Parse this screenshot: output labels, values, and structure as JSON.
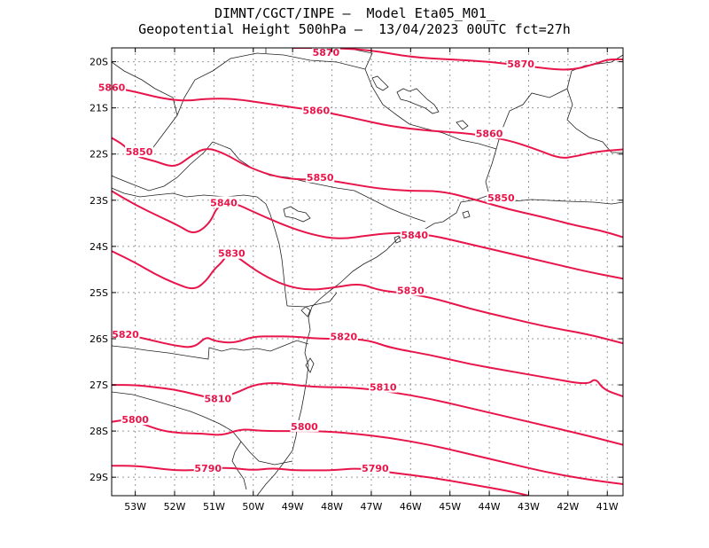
{
  "header": {
    "line1": "DIMNT/CGCT/INPE –  Model Eta05_M01_",
    "line2": "Geopotential Height 500hPa –  13/04/2023 00UTC fct=27h"
  },
  "axes": {
    "lat_ticks": [
      "20S",
      "21S",
      "22S",
      "23S",
      "24S",
      "25S",
      "26S",
      "27S",
      "28S",
      "29S"
    ],
    "lon_ticks": [
      "53W",
      "52W",
      "51W",
      "50W",
      "49W",
      "48W",
      "47W",
      "46W",
      "45W",
      "44W",
      "43W",
      "42W",
      "41W"
    ]
  },
  "chart_data": {
    "type": "contour",
    "variable": "Geopotential Height 500hPa",
    "xlim": [
      -53.6,
      -40.6
    ],
    "ylim": [
      -29.4,
      -19.7
    ],
    "grid": true,
    "contours": [
      {
        "level": 5870,
        "color": "#e8154a",
        "points": [
          [
            -49.0,
            -19.7
          ],
          [
            -48.0,
            -19.7
          ],
          [
            -47.0,
            -19.75
          ],
          [
            -46.0,
            -19.9
          ],
          [
            -45.0,
            -19.95
          ],
          [
            -44.0,
            -20.0
          ],
          [
            -43.0,
            -20.1
          ],
          [
            -42.0,
            -20.2
          ],
          [
            -41.3,
            -20.05
          ],
          [
            -41.0,
            -19.95
          ],
          [
            -40.6,
            -19.95
          ]
        ],
        "labels": [
          {
            "text": "5870",
            "lon": -48.15,
            "lat": -19.8
          },
          {
            "text": "5870",
            "lon": -43.2,
            "lat": -20.05
          }
        ]
      },
      {
        "level": 5860,
        "color": "#e8154a",
        "points": [
          [
            -53.6,
            -20.55
          ],
          [
            -53.0,
            -20.65
          ],
          [
            -52.3,
            -20.8
          ],
          [
            -51.7,
            -20.85
          ],
          [
            -51.2,
            -20.8
          ],
          [
            -50.5,
            -20.8
          ],
          [
            -49.7,
            -20.9
          ],
          [
            -48.9,
            -21.0
          ],
          [
            -48.1,
            -21.1
          ],
          [
            -47.3,
            -21.25
          ],
          [
            -46.5,
            -21.4
          ],
          [
            -45.5,
            -21.5
          ],
          [
            -44.5,
            -21.55
          ],
          [
            -43.5,
            -21.7
          ],
          [
            -42.8,
            -21.9
          ],
          [
            -42.2,
            -22.1
          ],
          [
            -41.8,
            -22.05
          ],
          [
            -41.3,
            -21.95
          ],
          [
            -40.6,
            -21.9
          ]
        ],
        "labels": [
          {
            "text": "5860",
            "lon": -53.6,
            "lat": -20.55
          },
          {
            "text": "5860",
            "lon": -48.4,
            "lat": -21.05
          },
          {
            "text": "5860",
            "lon": -44.0,
            "lat": -21.55
          }
        ]
      },
      {
        "level": 5850,
        "color": "#e8154a",
        "points": [
          [
            -53.6,
            -21.65
          ],
          [
            -53.3,
            -21.8
          ],
          [
            -53.0,
            -22.05
          ],
          [
            -52.5,
            -22.15
          ],
          [
            -52.0,
            -22.3
          ],
          [
            -51.6,
            -22.05
          ],
          [
            -51.2,
            -21.85
          ],
          [
            -50.7,
            -22.0
          ],
          [
            -50.2,
            -22.25
          ],
          [
            -49.6,
            -22.45
          ],
          [
            -49.0,
            -22.55
          ],
          [
            -48.2,
            -22.55
          ],
          [
            -47.5,
            -22.65
          ],
          [
            -46.8,
            -22.75
          ],
          [
            -46.0,
            -22.8
          ],
          [
            -45.2,
            -22.8
          ],
          [
            -44.3,
            -23.0
          ],
          [
            -43.5,
            -23.2
          ],
          [
            -42.7,
            -23.35
          ],
          [
            -41.8,
            -23.55
          ],
          [
            -41.2,
            -23.65
          ],
          [
            -40.6,
            -23.8
          ]
        ],
        "labels": [
          {
            "text": "5850",
            "lon": -52.9,
            "lat": -21.95
          },
          {
            "text": "5850",
            "lon": -48.3,
            "lat": -22.5
          },
          {
            "text": "5850",
            "lon": -43.7,
            "lat": -22.95
          }
        ]
      },
      {
        "level": 5840,
        "color": "#e8154a",
        "points": [
          [
            -53.6,
            -22.8
          ],
          [
            -53.0,
            -23.1
          ],
          [
            -52.4,
            -23.35
          ],
          [
            -51.9,
            -23.55
          ],
          [
            -51.5,
            -23.75
          ],
          [
            -51.1,
            -23.5
          ],
          [
            -50.9,
            -23.1
          ],
          [
            -50.5,
            -23.05
          ],
          [
            -50.0,
            -23.25
          ],
          [
            -49.2,
            -23.55
          ],
          [
            -48.5,
            -23.75
          ],
          [
            -47.8,
            -23.85
          ],
          [
            -47.0,
            -23.75
          ],
          [
            -46.3,
            -23.7
          ],
          [
            -45.5,
            -23.75
          ],
          [
            -44.5,
            -23.95
          ],
          [
            -43.5,
            -24.15
          ],
          [
            -42.5,
            -24.35
          ],
          [
            -41.5,
            -24.55
          ],
          [
            -40.6,
            -24.7
          ]
        ],
        "labels": [
          {
            "text": "5840",
            "lon": -50.75,
            "lat": -23.05
          },
          {
            "text": "5840",
            "lon": -45.9,
            "lat": -23.75
          }
        ]
      },
      {
        "level": 5830,
        "color": "#e8154a",
        "points": [
          [
            -53.6,
            -24.1
          ],
          [
            -53.0,
            -24.35
          ],
          [
            -52.5,
            -24.6
          ],
          [
            -52.0,
            -24.8
          ],
          [
            -51.5,
            -24.95
          ],
          [
            -51.2,
            -24.75
          ],
          [
            -51.0,
            -24.5
          ],
          [
            -50.8,
            -24.35
          ],
          [
            -50.6,
            -24.1
          ],
          [
            -50.3,
            -24.3
          ],
          [
            -49.8,
            -24.6
          ],
          [
            -49.2,
            -24.85
          ],
          [
            -48.6,
            -24.95
          ],
          [
            -48.0,
            -24.9
          ],
          [
            -47.3,
            -24.8
          ],
          [
            -46.8,
            -24.95
          ],
          [
            -46.3,
            -25.0
          ],
          [
            -45.5,
            -25.1
          ],
          [
            -44.5,
            -25.35
          ],
          [
            -43.5,
            -25.55
          ],
          [
            -42.5,
            -25.75
          ],
          [
            -41.5,
            -25.9
          ],
          [
            -40.6,
            -26.1
          ]
        ],
        "labels": [
          {
            "text": "5830",
            "lon": -50.55,
            "lat": -24.15
          },
          {
            "text": "5830",
            "lon": -46.0,
            "lat": -24.95
          }
        ]
      },
      {
        "level": 5820,
        "color": "#e8154a",
        "points": [
          [
            -53.6,
            -25.9
          ],
          [
            -53.0,
            -25.95
          ],
          [
            -52.5,
            -26.05
          ],
          [
            -52.0,
            -26.15
          ],
          [
            -51.5,
            -26.2
          ],
          [
            -51.2,
            -25.95
          ],
          [
            -51.0,
            -26.05
          ],
          [
            -50.5,
            -26.1
          ],
          [
            -50.0,
            -25.95
          ],
          [
            -49.5,
            -25.95
          ],
          [
            -49.0,
            -25.95
          ],
          [
            -48.3,
            -26.0
          ],
          [
            -47.5,
            -26.0
          ],
          [
            -47.0,
            -26.05
          ],
          [
            -46.5,
            -26.2
          ],
          [
            -45.5,
            -26.35
          ],
          [
            -44.5,
            -26.55
          ],
          [
            -43.5,
            -26.7
          ],
          [
            -42.5,
            -26.85
          ],
          [
            -41.5,
            -27.0
          ],
          [
            -41.3,
            -26.85
          ],
          [
            -41.1,
            -27.1
          ],
          [
            -40.6,
            -27.25
          ]
        ],
        "labels": [
          {
            "text": "5820",
            "lon": -53.25,
            "lat": -25.9
          },
          {
            "text": "5820",
            "lon": -47.7,
            "lat": -25.95
          }
        ]
      },
      {
        "level": 5810,
        "color": "#e8154a",
        "points": [
          [
            -53.6,
            -27.0
          ],
          [
            -53.0,
            -27.0
          ],
          [
            -52.5,
            -27.05
          ],
          [
            -52.0,
            -27.1
          ],
          [
            -51.5,
            -27.2
          ],
          [
            -51.0,
            -27.3
          ],
          [
            -50.5,
            -27.2
          ],
          [
            -50.0,
            -27.0
          ],
          [
            -49.5,
            -26.95
          ],
          [
            -49.0,
            -27.0
          ],
          [
            -48.3,
            -27.05
          ],
          [
            -47.5,
            -27.05
          ],
          [
            -46.5,
            -27.15
          ],
          [
            -45.5,
            -27.3
          ],
          [
            -44.5,
            -27.5
          ],
          [
            -43.5,
            -27.7
          ],
          [
            -42.5,
            -27.9
          ],
          [
            -41.5,
            -28.1
          ],
          [
            -40.6,
            -28.3
          ]
        ],
        "labels": [
          {
            "text": "5810",
            "lon": -50.9,
            "lat": -27.3
          },
          {
            "text": "5810",
            "lon": -46.7,
            "lat": -27.05
          }
        ]
      },
      {
        "level": 5800,
        "color": "#e8154a",
        "points": [
          [
            -53.6,
            -27.8
          ],
          [
            -53.2,
            -27.75
          ],
          [
            -52.8,
            -27.85
          ],
          [
            -52.3,
            -28.0
          ],
          [
            -51.8,
            -28.05
          ],
          [
            -51.3,
            -28.05
          ],
          [
            -50.8,
            -28.1
          ],
          [
            -50.3,
            -27.95
          ],
          [
            -49.8,
            -28.0
          ],
          [
            -49.0,
            -28.0
          ],
          [
            -48.3,
            -28.0
          ],
          [
            -47.5,
            -28.05
          ],
          [
            -46.5,
            -28.15
          ],
          [
            -45.5,
            -28.3
          ],
          [
            -44.5,
            -28.5
          ],
          [
            -43.5,
            -28.7
          ],
          [
            -42.5,
            -28.9
          ],
          [
            -41.5,
            -29.05
          ],
          [
            -40.6,
            -29.15
          ]
        ],
        "labels": [
          {
            "text": "5800",
            "lon": -53.0,
            "lat": -27.75
          },
          {
            "text": "5800",
            "lon": -48.7,
            "lat": -27.9
          }
        ]
      },
      {
        "level": 5790,
        "color": "#e8154a",
        "points": [
          [
            -53.6,
            -28.75
          ],
          [
            -53.0,
            -28.75
          ],
          [
            -52.5,
            -28.8
          ],
          [
            -52.0,
            -28.85
          ],
          [
            -51.5,
            -28.85
          ],
          [
            -51.0,
            -28.8
          ],
          [
            -50.5,
            -28.8
          ],
          [
            -50.0,
            -28.85
          ],
          [
            -49.5,
            -28.8
          ],
          [
            -49.0,
            -28.85
          ],
          [
            -48.5,
            -28.85
          ],
          [
            -48.0,
            -28.85
          ],
          [
            -47.3,
            -28.8
          ],
          [
            -46.5,
            -28.9
          ],
          [
            -45.5,
            -29.0
          ],
          [
            -44.5,
            -29.15
          ],
          [
            -43.5,
            -29.3
          ],
          [
            -43.0,
            -29.4
          ]
        ],
        "labels": [
          {
            "text": "5790",
            "lon": -51.15,
            "lat": -28.8
          },
          {
            "text": "5790",
            "lon": -46.9,
            "lat": -28.8
          }
        ]
      }
    ]
  }
}
